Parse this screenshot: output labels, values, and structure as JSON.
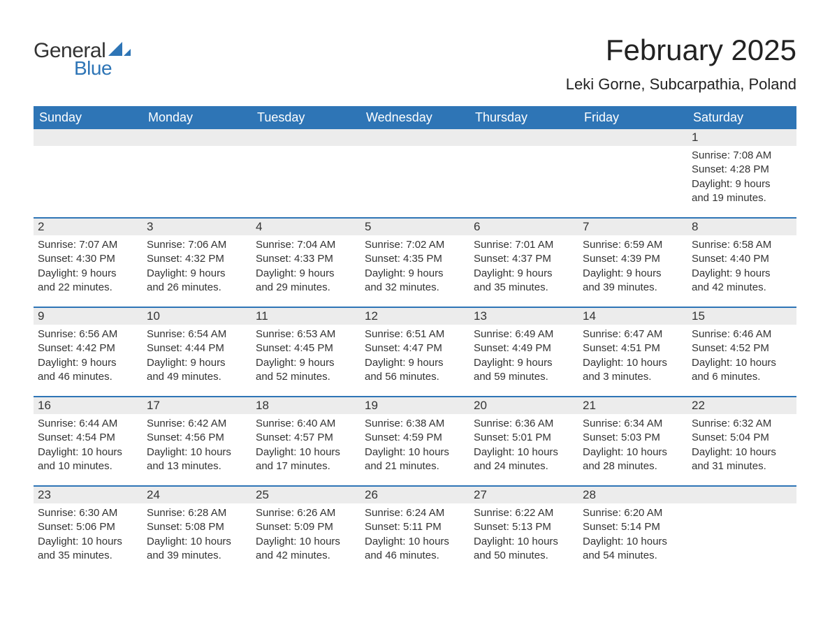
{
  "logo": {
    "text_general": "General",
    "text_blue": "Blue",
    "sail_color": "#2e75b6"
  },
  "page_title": "February 2025",
  "location": "Leki Gorne, Subcarpathia, Poland",
  "theme": {
    "header_bg": "#2e75b6",
    "header_fg": "#ffffff",
    "band_bg": "#ececec",
    "text_color": "#333333",
    "week_border": "#2e75b6",
    "body_bg": "#ffffff"
  },
  "days_of_week": [
    "Sunday",
    "Monday",
    "Tuesday",
    "Wednesday",
    "Thursday",
    "Friday",
    "Saturday"
  ],
  "weeks": [
    [
      {
        "blank": true
      },
      {
        "blank": true
      },
      {
        "blank": true
      },
      {
        "blank": true
      },
      {
        "blank": true
      },
      {
        "blank": true
      },
      {
        "day": "1",
        "sunrise": "Sunrise: 7:08 AM",
        "sunset": "Sunset: 4:28 PM",
        "daylight1": "Daylight: 9 hours",
        "daylight2": "and 19 minutes."
      }
    ],
    [
      {
        "day": "2",
        "sunrise": "Sunrise: 7:07 AM",
        "sunset": "Sunset: 4:30 PM",
        "daylight1": "Daylight: 9 hours",
        "daylight2": "and 22 minutes."
      },
      {
        "day": "3",
        "sunrise": "Sunrise: 7:06 AM",
        "sunset": "Sunset: 4:32 PM",
        "daylight1": "Daylight: 9 hours",
        "daylight2": "and 26 minutes."
      },
      {
        "day": "4",
        "sunrise": "Sunrise: 7:04 AM",
        "sunset": "Sunset: 4:33 PM",
        "daylight1": "Daylight: 9 hours",
        "daylight2": "and 29 minutes."
      },
      {
        "day": "5",
        "sunrise": "Sunrise: 7:02 AM",
        "sunset": "Sunset: 4:35 PM",
        "daylight1": "Daylight: 9 hours",
        "daylight2": "and 32 minutes."
      },
      {
        "day": "6",
        "sunrise": "Sunrise: 7:01 AM",
        "sunset": "Sunset: 4:37 PM",
        "daylight1": "Daylight: 9 hours",
        "daylight2": "and 35 minutes."
      },
      {
        "day": "7",
        "sunrise": "Sunrise: 6:59 AM",
        "sunset": "Sunset: 4:39 PM",
        "daylight1": "Daylight: 9 hours",
        "daylight2": "and 39 minutes."
      },
      {
        "day": "8",
        "sunrise": "Sunrise: 6:58 AM",
        "sunset": "Sunset: 4:40 PM",
        "daylight1": "Daylight: 9 hours",
        "daylight2": "and 42 minutes."
      }
    ],
    [
      {
        "day": "9",
        "sunrise": "Sunrise: 6:56 AM",
        "sunset": "Sunset: 4:42 PM",
        "daylight1": "Daylight: 9 hours",
        "daylight2": "and 46 minutes."
      },
      {
        "day": "10",
        "sunrise": "Sunrise: 6:54 AM",
        "sunset": "Sunset: 4:44 PM",
        "daylight1": "Daylight: 9 hours",
        "daylight2": "and 49 minutes."
      },
      {
        "day": "11",
        "sunrise": "Sunrise: 6:53 AM",
        "sunset": "Sunset: 4:45 PM",
        "daylight1": "Daylight: 9 hours",
        "daylight2": "and 52 minutes."
      },
      {
        "day": "12",
        "sunrise": "Sunrise: 6:51 AM",
        "sunset": "Sunset: 4:47 PM",
        "daylight1": "Daylight: 9 hours",
        "daylight2": "and 56 minutes."
      },
      {
        "day": "13",
        "sunrise": "Sunrise: 6:49 AM",
        "sunset": "Sunset: 4:49 PM",
        "daylight1": "Daylight: 9 hours",
        "daylight2": "and 59 minutes."
      },
      {
        "day": "14",
        "sunrise": "Sunrise: 6:47 AM",
        "sunset": "Sunset: 4:51 PM",
        "daylight1": "Daylight: 10 hours",
        "daylight2": "and 3 minutes."
      },
      {
        "day": "15",
        "sunrise": "Sunrise: 6:46 AM",
        "sunset": "Sunset: 4:52 PM",
        "daylight1": "Daylight: 10 hours",
        "daylight2": "and 6 minutes."
      }
    ],
    [
      {
        "day": "16",
        "sunrise": "Sunrise: 6:44 AM",
        "sunset": "Sunset: 4:54 PM",
        "daylight1": "Daylight: 10 hours",
        "daylight2": "and 10 minutes."
      },
      {
        "day": "17",
        "sunrise": "Sunrise: 6:42 AM",
        "sunset": "Sunset: 4:56 PM",
        "daylight1": "Daylight: 10 hours",
        "daylight2": "and 13 minutes."
      },
      {
        "day": "18",
        "sunrise": "Sunrise: 6:40 AM",
        "sunset": "Sunset: 4:57 PM",
        "daylight1": "Daylight: 10 hours",
        "daylight2": "and 17 minutes."
      },
      {
        "day": "19",
        "sunrise": "Sunrise: 6:38 AM",
        "sunset": "Sunset: 4:59 PM",
        "daylight1": "Daylight: 10 hours",
        "daylight2": "and 21 minutes."
      },
      {
        "day": "20",
        "sunrise": "Sunrise: 6:36 AM",
        "sunset": "Sunset: 5:01 PM",
        "daylight1": "Daylight: 10 hours",
        "daylight2": "and 24 minutes."
      },
      {
        "day": "21",
        "sunrise": "Sunrise: 6:34 AM",
        "sunset": "Sunset: 5:03 PM",
        "daylight1": "Daylight: 10 hours",
        "daylight2": "and 28 minutes."
      },
      {
        "day": "22",
        "sunrise": "Sunrise: 6:32 AM",
        "sunset": "Sunset: 5:04 PM",
        "daylight1": "Daylight: 10 hours",
        "daylight2": "and 31 minutes."
      }
    ],
    [
      {
        "day": "23",
        "sunrise": "Sunrise: 6:30 AM",
        "sunset": "Sunset: 5:06 PM",
        "daylight1": "Daylight: 10 hours",
        "daylight2": "and 35 minutes."
      },
      {
        "day": "24",
        "sunrise": "Sunrise: 6:28 AM",
        "sunset": "Sunset: 5:08 PM",
        "daylight1": "Daylight: 10 hours",
        "daylight2": "and 39 minutes."
      },
      {
        "day": "25",
        "sunrise": "Sunrise: 6:26 AM",
        "sunset": "Sunset: 5:09 PM",
        "daylight1": "Daylight: 10 hours",
        "daylight2": "and 42 minutes."
      },
      {
        "day": "26",
        "sunrise": "Sunrise: 6:24 AM",
        "sunset": "Sunset: 5:11 PM",
        "daylight1": "Daylight: 10 hours",
        "daylight2": "and 46 minutes."
      },
      {
        "day": "27",
        "sunrise": "Sunrise: 6:22 AM",
        "sunset": "Sunset: 5:13 PM",
        "daylight1": "Daylight: 10 hours",
        "daylight2": "and 50 minutes."
      },
      {
        "day": "28",
        "sunrise": "Sunrise: 6:20 AM",
        "sunset": "Sunset: 5:14 PM",
        "daylight1": "Daylight: 10 hours",
        "daylight2": "and 54 minutes."
      },
      {
        "blank": true
      }
    ]
  ]
}
